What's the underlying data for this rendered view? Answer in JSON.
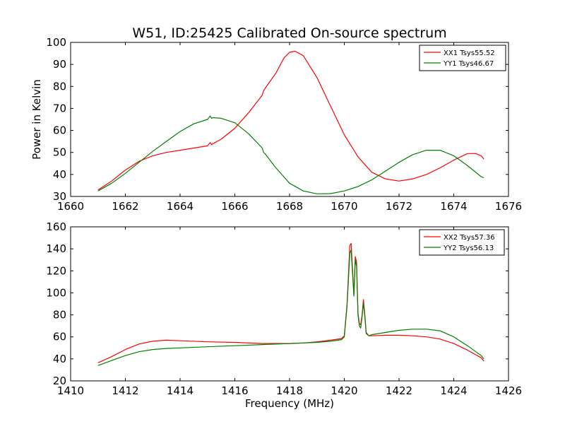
{
  "title": "W51, ID:25425 Calibrated On-source spectrum",
  "chart_data": [
    {
      "type": "line",
      "title": "W51, ID:25425 Calibrated On-source spectrum",
      "xlabel": "",
      "ylabel": "Power in Kelvin",
      "xlim": [
        1660,
        1676
      ],
      "ylim": [
        30,
        100
      ],
      "xticks": [
        1660,
        1662,
        1664,
        1666,
        1668,
        1670,
        1672,
        1674,
        1676
      ],
      "yticks": [
        30,
        40,
        50,
        60,
        70,
        80,
        90,
        100
      ],
      "legend_position": "top-right",
      "series": [
        {
          "name": "XX1 Tsys55.52",
          "color": "#ff0000",
          "x": [
            1661.0,
            1661.5,
            1662.0,
            1662.5,
            1663.0,
            1663.5,
            1664.0,
            1664.5,
            1665.0,
            1665.1,
            1665.15,
            1665.2,
            1665.5,
            1666.0,
            1666.5,
            1667.0,
            1667.05,
            1667.1,
            1667.5,
            1667.8,
            1668.0,
            1668.2,
            1668.5,
            1669.0,
            1669.5,
            1670.0,
            1670.5,
            1671.0,
            1671.5,
            1672.0,
            1672.5,
            1673.0,
            1673.5,
            1674.0,
            1674.5,
            1674.8,
            1675.0,
            1675.1
          ],
          "y": [
            33,
            37,
            42,
            46,
            48.5,
            50,
            51,
            52,
            53,
            54.5,
            53.5,
            54,
            56,
            61,
            68,
            76,
            78,
            79,
            86,
            93,
            95.5,
            96,
            94,
            84,
            71,
            58,
            48,
            41,
            38,
            37,
            38,
            40,
            43,
            46.5,
            49.5,
            49.5,
            48.5,
            47
          ]
        },
        {
          "name": "YY1 Tsys46.67",
          "color": "#008000",
          "x": [
            1661.0,
            1661.5,
            1662.0,
            1662.5,
            1663.0,
            1663.5,
            1664.0,
            1664.5,
            1665.0,
            1665.1,
            1665.15,
            1665.2,
            1665.5,
            1666.0,
            1666.5,
            1667.0,
            1667.05,
            1667.1,
            1667.5,
            1668.0,
            1668.5,
            1669.0,
            1669.5,
            1670.0,
            1670.5,
            1671.0,
            1671.5,
            1672.0,
            1672.5,
            1673.0,
            1673.5,
            1674.0,
            1674.5,
            1675.0,
            1675.1
          ],
          "y": [
            32.5,
            36,
            40.5,
            45.5,
            50.5,
            55,
            59.5,
            63,
            65,
            66.5,
            65.5,
            65.8,
            65.5,
            63.5,
            58.5,
            52,
            50,
            49.5,
            43,
            36,
            32.5,
            31.2,
            31.3,
            32.5,
            34.5,
            37.5,
            41.5,
            45.5,
            49,
            51,
            51,
            48.5,
            44,
            39,
            38.5
          ]
        }
      ]
    },
    {
      "type": "line",
      "title": "",
      "xlabel": "Frequency (MHz)",
      "ylabel": "",
      "xlim": [
        1410,
        1426
      ],
      "ylim": [
        20,
        160
      ],
      "xticks": [
        1410,
        1412,
        1414,
        1416,
        1418,
        1420,
        1422,
        1424,
        1426
      ],
      "yticks": [
        20,
        40,
        60,
        80,
        100,
        120,
        140,
        160
      ],
      "legend_position": "top-right",
      "series": [
        {
          "name": "XX2 Tsys57.36",
          "color": "#ff0000",
          "x": [
            1411.0,
            1411.5,
            1412.0,
            1412.5,
            1413.0,
            1413.5,
            1414.0,
            1415.0,
            1416.0,
            1417.0,
            1418.0,
            1418.5,
            1419.0,
            1419.5,
            1419.9,
            1420.0,
            1420.1,
            1420.2,
            1420.25,
            1420.3,
            1420.35,
            1420.4,
            1420.45,
            1420.5,
            1420.55,
            1420.6,
            1420.65,
            1420.7,
            1420.75,
            1420.8,
            1420.9,
            1421.0,
            1421.5,
            1422.0,
            1422.5,
            1423.0,
            1423.5,
            1424.0,
            1424.5,
            1425.0,
            1425.1
          ],
          "y": [
            36.5,
            42,
            48.5,
            53.5,
            56,
            57,
            56.5,
            55.5,
            55,
            54,
            54,
            54.5,
            55.5,
            57,
            58.5,
            61,
            90,
            143,
            145,
            122,
            98,
            133,
            128,
            82,
            72,
            71,
            80,
            94,
            80,
            64,
            61,
            61,
            61.5,
            61.5,
            61,
            60,
            58,
            54,
            48,
            41,
            38
          ]
        },
        {
          "name": "YY2 Tsys56.13",
          "color": "#008000",
          "x": [
            1411.0,
            1411.5,
            1412.0,
            1412.5,
            1413.0,
            1413.5,
            1414.0,
            1415.0,
            1416.0,
            1417.0,
            1418.0,
            1418.5,
            1419.0,
            1419.5,
            1419.9,
            1420.0,
            1420.1,
            1420.2,
            1420.25,
            1420.3,
            1420.35,
            1420.4,
            1420.45,
            1420.5,
            1420.55,
            1420.6,
            1420.65,
            1420.7,
            1420.75,
            1420.8,
            1420.9,
            1421.0,
            1421.5,
            1422.0,
            1422.5,
            1423.0,
            1423.5,
            1424.0,
            1424.5,
            1425.0,
            1425.1
          ],
          "y": [
            34,
            38.5,
            43,
            46.5,
            48.5,
            49.5,
            50,
            51,
            52,
            53,
            54,
            54.5,
            55,
            56,
            57.5,
            60,
            88,
            136,
            139,
            118,
            97,
            130,
            124,
            80,
            70,
            68,
            78,
            91,
            78,
            63,
            61,
            62,
            64,
            66,
            67,
            67,
            65.5,
            60,
            52,
            43,
            40
          ]
        }
      ]
    }
  ]
}
